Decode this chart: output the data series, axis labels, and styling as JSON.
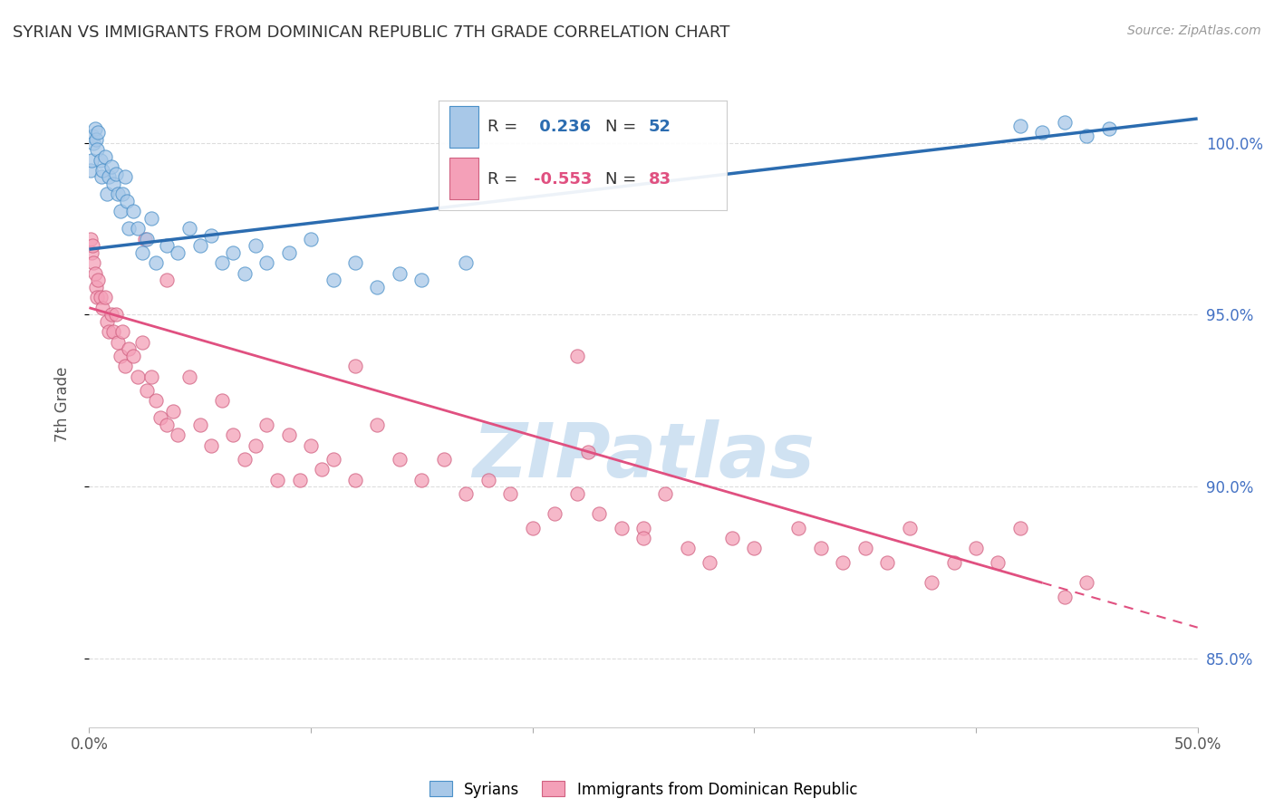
{
  "title": "SYRIAN VS IMMIGRANTS FROM DOMINICAN REPUBLIC 7TH GRADE CORRELATION CHART",
  "source": "Source: ZipAtlas.com",
  "ylabel": "7th Grade",
  "legend_label1": "Syrians",
  "legend_label2": "Immigrants from Dominican Republic",
  "R1": 0.236,
  "N1": 52,
  "R2": -0.553,
  "N2": 83,
  "blue_color": "#a8c8e8",
  "pink_color": "#f4a0b8",
  "blue_line_color": "#2b6cb0",
  "pink_line_color": "#e05080",
  "blue_edge_color": "#4a90c8",
  "pink_edge_color": "#d06080",
  "xmin": 0.0,
  "xmax": 50.0,
  "ymin": 83.0,
  "ymax": 101.8,
  "yticks": [
    85.0,
    90.0,
    95.0,
    100.0
  ],
  "xtick_positions": [
    0.0,
    10.0,
    20.0,
    30.0,
    40.0,
    50.0
  ],
  "blue_scatter_x": [
    0.05,
    0.1,
    0.15,
    0.2,
    0.25,
    0.3,
    0.35,
    0.4,
    0.5,
    0.55,
    0.6,
    0.7,
    0.8,
    0.9,
    1.0,
    1.1,
    1.2,
    1.3,
    1.4,
    1.5,
    1.6,
    1.7,
    1.8,
    2.0,
    2.2,
    2.4,
    2.6,
    2.8,
    3.0,
    3.5,
    4.0,
    4.5,
    5.0,
    5.5,
    6.0,
    6.5,
    7.0,
    7.5,
    8.0,
    9.0,
    10.0,
    11.0,
    12.0,
    13.0,
    14.0,
    15.0,
    17.0,
    42.0,
    43.0,
    44.0,
    45.0,
    46.0
  ],
  "blue_scatter_y": [
    99.2,
    99.5,
    100.2,
    100.0,
    100.4,
    100.1,
    99.8,
    100.3,
    99.5,
    99.0,
    99.2,
    99.6,
    98.5,
    99.0,
    99.3,
    98.8,
    99.1,
    98.5,
    98.0,
    98.5,
    99.0,
    98.3,
    97.5,
    98.0,
    97.5,
    96.8,
    97.2,
    97.8,
    96.5,
    97.0,
    96.8,
    97.5,
    97.0,
    97.3,
    96.5,
    96.8,
    96.2,
    97.0,
    96.5,
    96.8,
    97.2,
    96.0,
    96.5,
    95.8,
    96.2,
    96.0,
    96.5,
    100.5,
    100.3,
    100.6,
    100.2,
    100.4
  ],
  "pink_scatter_x": [
    0.05,
    0.1,
    0.15,
    0.2,
    0.25,
    0.3,
    0.35,
    0.4,
    0.5,
    0.6,
    0.7,
    0.8,
    0.9,
    1.0,
    1.1,
    1.2,
    1.3,
    1.4,
    1.5,
    1.6,
    1.8,
    2.0,
    2.2,
    2.4,
    2.6,
    2.8,
    3.0,
    3.2,
    3.5,
    3.8,
    4.0,
    4.5,
    5.0,
    5.5,
    6.0,
    6.5,
    7.0,
    7.5,
    8.0,
    8.5,
    9.0,
    9.5,
    10.0,
    10.5,
    11.0,
    12.0,
    13.0,
    14.0,
    15.0,
    16.0,
    17.0,
    18.0,
    19.0,
    20.0,
    21.0,
    22.0,
    23.0,
    24.0,
    25.0,
    26.0,
    27.0,
    28.0,
    29.0,
    30.0,
    32.0,
    33.0,
    34.0,
    35.0,
    36.0,
    37.0,
    38.0,
    39.0,
    40.0,
    41.0,
    42.0,
    44.0,
    45.0,
    22.0,
    22.5,
    25.0,
    12.0,
    2.5,
    3.5
  ],
  "pink_scatter_y": [
    97.2,
    96.8,
    97.0,
    96.5,
    96.2,
    95.8,
    95.5,
    96.0,
    95.5,
    95.2,
    95.5,
    94.8,
    94.5,
    95.0,
    94.5,
    95.0,
    94.2,
    93.8,
    94.5,
    93.5,
    94.0,
    93.8,
    93.2,
    94.2,
    92.8,
    93.2,
    92.5,
    92.0,
    91.8,
    92.2,
    91.5,
    93.2,
    91.8,
    91.2,
    92.5,
    91.5,
    90.8,
    91.2,
    91.8,
    90.2,
    91.5,
    90.2,
    91.2,
    90.5,
    90.8,
    90.2,
    91.8,
    90.8,
    90.2,
    90.8,
    89.8,
    90.2,
    89.8,
    88.8,
    89.2,
    89.8,
    89.2,
    88.8,
    88.8,
    89.8,
    88.2,
    87.8,
    88.5,
    88.2,
    88.8,
    88.2,
    87.8,
    88.2,
    87.8,
    88.8,
    87.2,
    87.8,
    88.2,
    87.8,
    88.8,
    86.8,
    87.2,
    93.8,
    91.0,
    88.5,
    93.5,
    97.2,
    96.0
  ],
  "blue_trend_x0": 0.0,
  "blue_trend_x1": 50.0,
  "blue_trend_y0": 96.9,
  "blue_trend_y1": 100.7,
  "pink_trend_solid_x0": 0.0,
  "pink_trend_solid_x1": 43.0,
  "pink_trend_solid_y0": 95.2,
  "pink_trend_solid_y1": 87.2,
  "pink_trend_dash_x0": 43.0,
  "pink_trend_dash_x1": 50.0,
  "pink_trend_dash_y0": 87.2,
  "pink_trend_dash_y1": 85.9,
  "background_color": "#ffffff",
  "grid_color": "#dddddd",
  "watermark_text": "ZIPatlas",
  "watermark_color": "#c8ddf0",
  "title_color": "#333333",
  "right_axis_label_color": "#4472c4",
  "legend_bg_color": "#f5f5f5",
  "legend_border_color": "#cccccc"
}
